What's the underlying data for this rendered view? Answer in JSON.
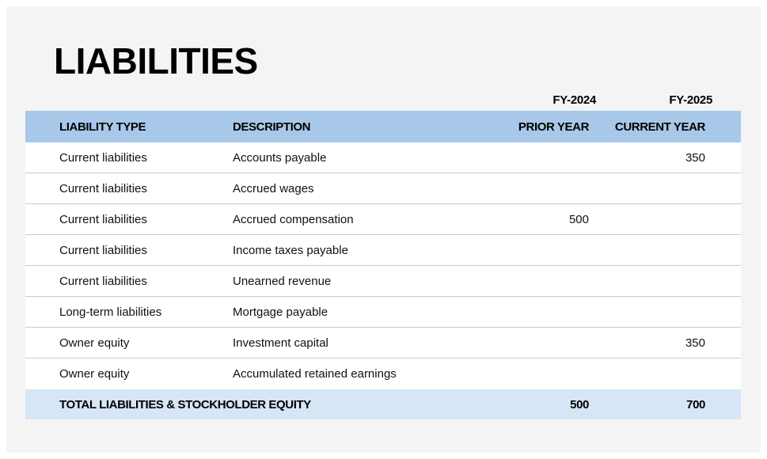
{
  "title": "LIABILITIES",
  "fiscal_years": {
    "prior": "FY-2024",
    "current": "FY-2025"
  },
  "header": {
    "type": "LIABILITY TYPE",
    "description": "DESCRIPTION",
    "prior": "PRIOR YEAR",
    "current": "CURRENT YEAR"
  },
  "rows": [
    {
      "type": "Current liabilities",
      "description": "Accounts payable",
      "prior": "",
      "current": "350"
    },
    {
      "type": "Current liabilities",
      "description": "Accrued wages",
      "prior": "",
      "current": ""
    },
    {
      "type": "Current liabilities",
      "description": "Accrued compensation",
      "prior": "500",
      "current": ""
    },
    {
      "type": "Current liabilities",
      "description": "Income taxes payable",
      "prior": "",
      "current": ""
    },
    {
      "type": "Current liabilities",
      "description": "Unearned revenue",
      "prior": "",
      "current": ""
    },
    {
      "type": "Long-term liabilities",
      "description": "Mortgage payable",
      "prior": "",
      "current": ""
    },
    {
      "type": "Owner equity",
      "description": "Investment capital",
      "prior": "",
      "current": "350"
    },
    {
      "type": "Owner equity",
      "description": "Accumulated retained earnings",
      "prior": "",
      "current": ""
    }
  ],
  "total": {
    "label": "TOTAL LIABILITIES & STOCKHOLDER EQUITY",
    "prior": "500",
    "current": "700"
  },
  "colors": {
    "header_bg": "#a8c8ea",
    "total_bg": "#d6e6f6",
    "row_border": "#b7cde2",
    "sheet_bg": "#f4f4f4"
  }
}
